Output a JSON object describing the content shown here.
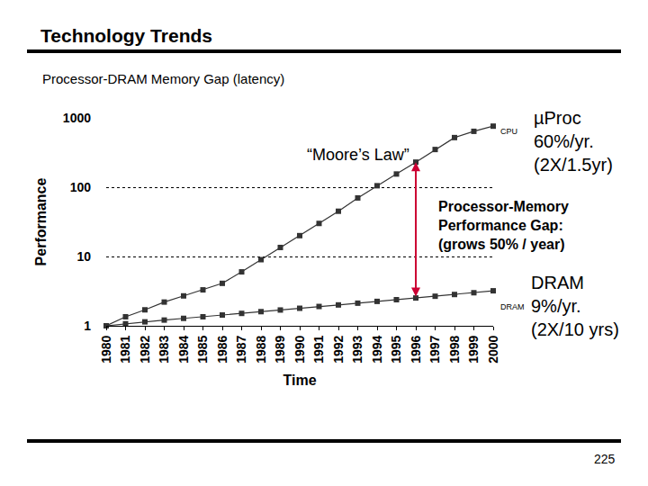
{
  "chart_data": {
    "type": "line",
    "title": "Technology Trends",
    "subtitle": "Processor-DRAM Memory Gap (latency)",
    "x_label": "Time",
    "y_label": "Performance",
    "x": [
      1980,
      1981,
      1982,
      1983,
      1984,
      1985,
      1986,
      1987,
      1988,
      1989,
      1990,
      1991,
      1992,
      1993,
      1994,
      1995,
      1996,
      1997,
      1998,
      1999,
      2000
    ],
    "series": [
      {
        "name": "CPU",
        "color": "#333333",
        "marker": "square",
        "values": [
          1,
          1.35,
          1.7,
          2.2,
          2.7,
          3.3,
          4.1,
          6,
          9,
          13.5,
          20,
          30,
          45,
          70,
          105,
          155,
          230,
          350,
          520,
          640,
          760
        ]
      },
      {
        "name": "DRAM",
        "color": "#333333",
        "marker": "square",
        "values": [
          1,
          1.07,
          1.14,
          1.21,
          1.28,
          1.35,
          1.43,
          1.51,
          1.6,
          1.69,
          1.79,
          1.9,
          2.0,
          2.12,
          2.25,
          2.38,
          2.52,
          2.67,
          2.83,
          3.0,
          3.2
        ]
      }
    ],
    "xlim": [
      1980,
      2000
    ],
    "xticks": [
      1980,
      1981,
      1982,
      1983,
      1984,
      1985,
      1986,
      1987,
      1988,
      1989,
      1990,
      1991,
      1992,
      1993,
      1994,
      1995,
      1996,
      1997,
      1998,
      1999,
      2000
    ],
    "ylim": [
      1,
      1000
    ],
    "yticks": [
      1,
      10,
      100,
      1000
    ],
    "log": "y",
    "grid": true,
    "annotations": [
      "“Moore’s Law”",
      "µProc\n60%/yr.\n(2X/1.5yr)",
      "Processor-Memory\nPerformance Gap:\n(grows 50% / year)",
      "DRAM\n9%/yr.\n(2X/10 yrs)",
      "225"
    ]
  }
}
